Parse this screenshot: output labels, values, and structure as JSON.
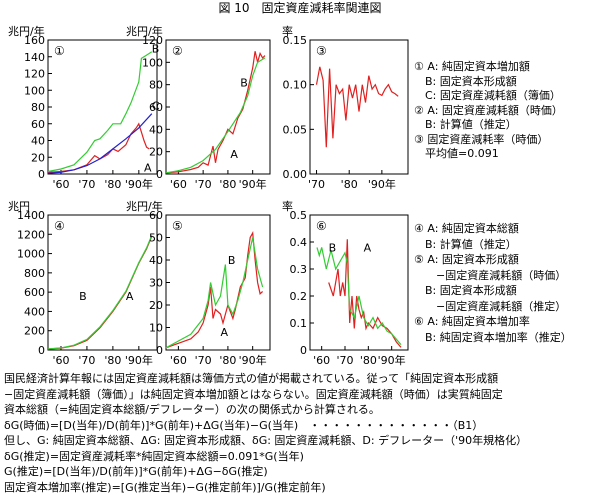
{
  "figure_title": "図 10　固定資産減耗率関連図",
  "colors": {
    "green": "#33cc33",
    "red": "#e02020",
    "blue": "#2020d0",
    "axis": "#000000"
  },
  "legend_top": [
    "① A: 純固定資本増加額",
    "　B: 固定資本形成額",
    "　C: 固定資産減耗額（簿価）",
    "② A: 固定資産減耗額（時価）",
    "　B: 計算値（推定）",
    "③ 固定資産減耗率（時価）",
    "　平均値=0.091"
  ],
  "legend_bottom": [
    "④ A: 純固定資本総額",
    "　B: 計算値（推定）",
    "⑤ A: 固定資本形成額",
    "　　−固定資産減耗額（時価）",
    "　B: 固定資本形成額",
    "　　−固定資産減耗額（推定）",
    "⑥ A: 純固定資本増加率",
    "　B: 純固定資本増加率（推定）"
  ],
  "notes": [
    "国民経済計算年報には固定資産減耗額は簿価方式の値が掲載されている。従って「純固定資本形成額",
    "−固定資産減耗額（簿価）」は純固定資本増加額とはならない。固定資産減耗額（時価）は実質純固定",
    "資本総額（=純固定資本総額/デフレーター）の次の関係式から計算される。",
    "δG(時価)=[D(当年)/D(前年)]*G(前年)+ΔG(当年)−G(当年)　・・・・・・・・・・・・・（B1）",
    "但し、G: 純固定資本総額、ΔG: 固定資本形成額、δG: 固定資産減耗額、D: デフレーター（'90年規格化）",
    "δG(推定)=固定資産減耗率*純固定資本総額=0.091*G(当年)",
    "G(推定)=[D(当年)/D(前年)]*G(前年)+ΔG−δG(推定)",
    "固定資本増加率(推定)=[G(推定当年)−G(推定前年)]/G(推定前年)"
  ],
  "chart_data": [
    {
      "id": 1,
      "type": "line",
      "panel_label": "①",
      "ylabel": "兆円/年",
      "ylim": [
        0,
        160
      ],
      "yticks": [
        0,
        20,
        40,
        60,
        80,
        100,
        120,
        140,
        160
      ],
      "xlim": [
        1955,
        1997
      ],
      "xticks": [
        1960,
        1970,
        1980,
        1990
      ],
      "xticklabels": [
        "'60",
        "'70",
        "'80",
        "'90年"
      ],
      "series": [
        {
          "name": "A",
          "color": "red",
          "label_at": [
            1992,
            8
          ],
          "points": [
            [
              1955,
              2
            ],
            [
              1960,
              3
            ],
            [
              1965,
              5
            ],
            [
              1970,
              11
            ],
            [
              1973,
              22
            ],
            [
              1975,
              18
            ],
            [
              1978,
              23
            ],
            [
              1980,
              30
            ],
            [
              1982,
              27
            ],
            [
              1985,
              35
            ],
            [
              1987,
              48
            ],
            [
              1989,
              55
            ],
            [
              1990,
              60
            ],
            [
              1991,
              50
            ],
            [
              1992,
              40
            ],
            [
              1993,
              32
            ],
            [
              1994,
              30
            ]
          ]
        },
        {
          "name": "B",
          "color": "green",
          "label_at": [
            1995,
            150
          ],
          "points": [
            [
              1955,
              3
            ],
            [
              1960,
              6
            ],
            [
              1965,
              11
            ],
            [
              1970,
              26
            ],
            [
              1973,
              40
            ],
            [
              1975,
              42
            ],
            [
              1978,
              52
            ],
            [
              1980,
              60
            ],
            [
              1983,
              60
            ],
            [
              1985,
              72
            ],
            [
              1987,
              85
            ],
            [
              1990,
              110
            ],
            [
              1991,
              138
            ],
            [
              1993,
              142
            ],
            [
              1995,
              146
            ]
          ]
        },
        {
          "name": "C",
          "color": "blue",
          "label_at": [
            1995,
            82
          ],
          "points": [
            [
              1955,
              1
            ],
            [
              1960,
              2
            ],
            [
              1965,
              5
            ],
            [
              1970,
              10
            ],
            [
              1975,
              18
            ],
            [
              1980,
              30
            ],
            [
              1985,
              42
            ],
            [
              1990,
              55
            ],
            [
              1995,
              72
            ]
          ]
        }
      ]
    },
    {
      "id": 2,
      "type": "line",
      "panel_label": "②",
      "ylabel": "兆円/年",
      "ylim": [
        0,
        120
      ],
      "yticks": [
        0,
        20,
        40,
        60,
        80,
        100,
        120
      ],
      "xlim": [
        1955,
        1997
      ],
      "xticks": [
        1960,
        1970,
        1980,
        1990
      ],
      "xticklabels": [
        "'60",
        "'70",
        "'80",
        "'90年"
      ],
      "series": [
        {
          "name": "A",
          "color": "red",
          "label_at": [
            1981,
            18
          ],
          "points": [
            [
              1955,
              1
            ],
            [
              1960,
              2
            ],
            [
              1965,
              4
            ],
            [
              1968,
              6
            ],
            [
              1970,
              10
            ],
            [
              1972,
              8
            ],
            [
              1974,
              25
            ],
            [
              1975,
              10
            ],
            [
              1976,
              22
            ],
            [
              1978,
              30
            ],
            [
              1980,
              40
            ],
            [
              1982,
              36
            ],
            [
              1984,
              50
            ],
            [
              1986,
              58
            ],
            [
              1988,
              75
            ],
            [
              1990,
              95
            ],
            [
              1991,
              110
            ],
            [
              1992,
              100
            ],
            [
              1993,
              108
            ],
            [
              1994,
              104
            ],
            [
              1995,
              106
            ]
          ]
        },
        {
          "name": "B",
          "color": "green",
          "label_at": [
            1985,
            82
          ],
          "points": [
            [
              1955,
              1
            ],
            [
              1960,
              3
            ],
            [
              1965,
              6
            ],
            [
              1970,
              12
            ],
            [
              1975,
              22
            ],
            [
              1980,
              38
            ],
            [
              1985,
              55
            ],
            [
              1988,
              70
            ],
            [
              1990,
              88
            ],
            [
              1992,
              100
            ],
            [
              1995,
              104
            ]
          ]
        }
      ]
    },
    {
      "id": 3,
      "type": "line",
      "panel_label": "③",
      "ylabel": "率",
      "ylim": [
        0,
        0.15
      ],
      "yticks": [
        0,
        0.05,
        0.1,
        0.15
      ],
      "yticklabels": [
        "0.00",
        "0.05",
        "0.10",
        "0.15"
      ],
      "xlim": [
        1968,
        1998
      ],
      "xticks": [
        1970,
        1980,
        1990
      ],
      "xticklabels": [
        "'70",
        "'80",
        "'90年"
      ],
      "series": [
        {
          "name": "",
          "color": "red",
          "points": [
            [
              1970,
              0.1
            ],
            [
              1971,
              0.12
            ],
            [
              1972,
              0.105
            ],
            [
              1973,
              0.03
            ],
            [
              1974,
              0.118
            ],
            [
              1975,
              0.04
            ],
            [
              1976,
              0.1
            ],
            [
              1977,
              0.09
            ],
            [
              1978,
              0.095
            ],
            [
              1979,
              0.06
            ],
            [
              1980,
              0.1
            ],
            [
              1981,
              0.085
            ],
            [
              1982,
              0.1
            ],
            [
              1983,
              0.07
            ],
            [
              1984,
              0.1
            ],
            [
              1985,
              0.08
            ],
            [
              1986,
              0.11
            ],
            [
              1987,
              0.095
            ],
            [
              1988,
              0.1
            ],
            [
              1989,
              0.09
            ],
            [
              1990,
              0.088
            ],
            [
              1991,
              0.095
            ],
            [
              1992,
              0.1
            ],
            [
              1993,
              0.092
            ],
            [
              1994,
              0.09
            ],
            [
              1995,
              0.087
            ]
          ]
        }
      ]
    },
    {
      "id": 4,
      "type": "line",
      "panel_label": "④",
      "ylabel": "兆円",
      "ylim": [
        0,
        1400
      ],
      "yticks": [
        0,
        200,
        400,
        600,
        800,
        1000,
        1200,
        1400
      ],
      "xlim": [
        1955,
        1997
      ],
      "xticks": [
        1960,
        1970,
        1980,
        1990
      ],
      "xticklabels": [
        "'60",
        "'70",
        "'80",
        "'90年"
      ],
      "series": [
        {
          "name": "A",
          "color": "red",
          "label_at": [
            1985,
            560
          ],
          "points": [
            [
              1955,
              10
            ],
            [
              1960,
              20
            ],
            [
              1965,
              45
            ],
            [
              1970,
              100
            ],
            [
              1975,
              230
            ],
            [
              1980,
              400
            ],
            [
              1985,
              600
            ],
            [
              1990,
              900
            ],
            [
              1993,
              1050
            ],
            [
              1995,
              1180
            ]
          ]
        },
        {
          "name": "B",
          "color": "green",
          "label_at": [
            1967,
            560
          ],
          "points": [
            [
              1955,
              10
            ],
            [
              1960,
              22
            ],
            [
              1965,
              50
            ],
            [
              1970,
              110
            ],
            [
              1975,
              240
            ],
            [
              1980,
              410
            ],
            [
              1985,
              610
            ],
            [
              1990,
              905
            ],
            [
              1993,
              1060
            ],
            [
              1995,
              1190
            ]
          ]
        }
      ]
    },
    {
      "id": 5,
      "type": "line",
      "panel_label": "⑤",
      "ylabel": "兆円/年",
      "ylim": [
        0,
        60
      ],
      "yticks": [
        0,
        10,
        20,
        30,
        40,
        50,
        60
      ],
      "xlim": [
        1955,
        1997
      ],
      "xticks": [
        1960,
        1970,
        1980,
        1990
      ],
      "xticklabels": [
        "'60",
        "'70",
        "'80",
        "'90年"
      ],
      "series": [
        {
          "name": "A",
          "color": "red",
          "label_at": [
            1977,
            8
          ],
          "points": [
            [
              1955,
              1
            ],
            [
              1960,
              3
            ],
            [
              1965,
              5
            ],
            [
              1968,
              8
            ],
            [
              1970,
              12
            ],
            [
              1972,
              20
            ],
            [
              1973,
              28
            ],
            [
              1974,
              14
            ],
            [
              1975,
              18
            ],
            [
              1977,
              16
            ],
            [
              1978,
              12
            ],
            [
              1980,
              20
            ],
            [
              1982,
              14
            ],
            [
              1983,
              18
            ],
            [
              1985,
              28
            ],
            [
              1987,
              32
            ],
            [
              1988,
              42
            ],
            [
              1989,
              50
            ],
            [
              1990,
              52
            ],
            [
              1991,
              40
            ],
            [
              1992,
              30
            ],
            [
              1993,
              25
            ],
            [
              1994,
              26
            ]
          ]
        },
        {
          "name": "B",
          "color": "green",
          "label_at": [
            1980,
            40
          ],
          "points": [
            [
              1955,
              1
            ],
            [
              1960,
              4
            ],
            [
              1965,
              7
            ],
            [
              1970,
              14
            ],
            [
              1972,
              22
            ],
            [
              1973,
              30
            ],
            [
              1975,
              20
            ],
            [
              1977,
              24
            ],
            [
              1979,
              38
            ],
            [
              1980,
              20
            ],
            [
              1982,
              16
            ],
            [
              1984,
              22
            ],
            [
              1986,
              30
            ],
            [
              1988,
              40
            ],
            [
              1990,
              50
            ],
            [
              1992,
              36
            ],
            [
              1994,
              28
            ]
          ]
        }
      ]
    },
    {
      "id": 6,
      "type": "line",
      "panel_label": "⑥",
      "ylabel": "率",
      "ylim": [
        0,
        0.5
      ],
      "yticks": [
        0,
        0.1,
        0.2,
        0.3,
        0.4,
        0.5
      ],
      "yticklabels": [
        "0",
        "0.1",
        "0.2",
        "0.3",
        "0.4",
        "0.5"
      ],
      "xlim": [
        1955,
        1997
      ],
      "xticks": [
        1960,
        1970,
        1980,
        1990
      ],
      "xticklabels": [
        "'60",
        "'70",
        "'80",
        "'90年"
      ],
      "series": [
        {
          "name": "A",
          "color": "red",
          "label_at": [
            1978,
            0.38
          ],
          "points": [
            [
              1963,
              0.25
            ],
            [
              1965,
              0.2
            ],
            [
              1967,
              0.3
            ],
            [
              1968,
              0.2
            ],
            [
              1969,
              0.25
            ],
            [
              1970,
              0.2
            ],
            [
              1971,
              0.41
            ],
            [
              1972,
              0.1
            ],
            [
              1973,
              0.2
            ],
            [
              1974,
              0.08
            ],
            [
              1975,
              0.2
            ],
            [
              1976,
              0.15
            ],
            [
              1977,
              0.12
            ],
            [
              1978,
              0.14
            ],
            [
              1979,
              0.08
            ],
            [
              1980,
              0.1
            ],
            [
              1982,
              0.08
            ],
            [
              1984,
              0.12
            ],
            [
              1986,
              0.09
            ],
            [
              1988,
              0.08
            ],
            [
              1990,
              0.06
            ],
            [
              1992,
              0.03
            ],
            [
              1994,
              0.01
            ]
          ]
        },
        {
          "name": "B",
          "color": "green",
          "label_at": [
            1963,
            0.38
          ],
          "points": [
            [
              1958,
              0.38
            ],
            [
              1959,
              0.35
            ],
            [
              1960,
              0.38
            ],
            [
              1962,
              0.3
            ],
            [
              1964,
              0.37
            ],
            [
              1966,
              0.3
            ],
            [
              1968,
              0.33
            ],
            [
              1970,
              0.36
            ],
            [
              1971,
              0.32
            ],
            [
              1972,
              0.15
            ],
            [
              1974,
              0.12
            ],
            [
              1976,
              0.2
            ],
            [
              1978,
              0.12
            ],
            [
              1980,
              0.09
            ],
            [
              1982,
              0.12
            ],
            [
              1984,
              0.08
            ],
            [
              1986,
              0.1
            ],
            [
              1988,
              0.07
            ],
            [
              1990,
              0.06
            ],
            [
              1992,
              0.04
            ],
            [
              1994,
              0.02
            ]
          ]
        }
      ]
    }
  ]
}
